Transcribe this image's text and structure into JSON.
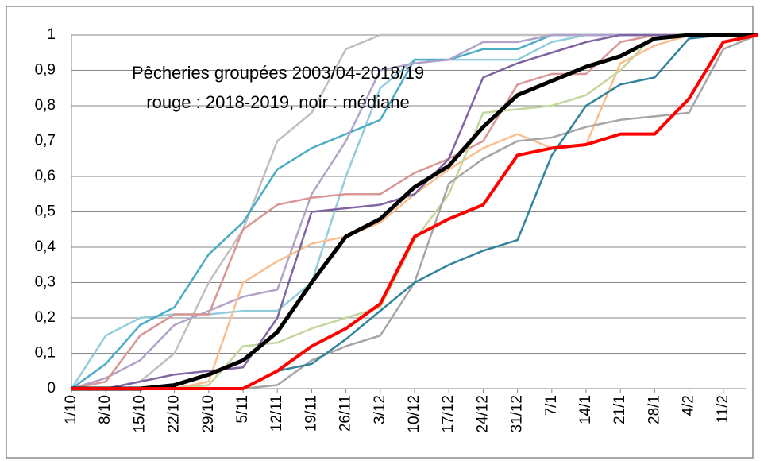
{
  "chart_data": {
    "type": "line",
    "annotations": [
      "Pêcheries groupées 2003/04-2018/19",
      "rouge : 2018-2019, noir : médiane"
    ],
    "categories": [
      "1/10",
      "8/10",
      "15/10",
      "22/10",
      "29/10",
      "5/11",
      "12/11",
      "19/11",
      "26/11",
      "3/12",
      "10/12",
      "17/12",
      "24/12",
      "31/12",
      "7/1",
      "14/1",
      "21/1",
      "28/1",
      "4/2",
      "11/2",
      null
    ],
    "ylim": [
      0,
      1
    ],
    "yticks": [
      0,
      {
        "value": 0.1,
        "label": "0,1"
      },
      {
        "value": 0.2,
        "label": "0,2"
      },
      {
        "value": 0.3,
        "label": "0,3"
      },
      {
        "value": 0.4,
        "label": "0,4"
      },
      {
        "value": 0.5,
        "label": "0,5"
      },
      {
        "value": 0.6,
        "label": "0,6"
      },
      {
        "value": 0.7,
        "label": "0,7"
      },
      {
        "value": 0.8,
        "label": "0,8"
      },
      {
        "value": 0.9,
        "label": "0,9"
      },
      1
    ],
    "grid": true,
    "series": [
      {
        "color": "#bfbfbf",
        "values": [
          0,
          0,
          0.02,
          0.1,
          0.3,
          0.45,
          0.7,
          0.78,
          0.96,
          1,
          1,
          1,
          1,
          1,
          1,
          1,
          1,
          1,
          1,
          1,
          1
        ]
      },
      {
        "color": "#93cddd",
        "values": [
          0,
          0.15,
          0.2,
          0.21,
          0.21,
          0.22,
          0.22,
          0.3,
          0.6,
          0.85,
          0.93,
          0.93,
          0.93,
          0.93,
          0.98,
          1,
          1,
          1,
          1,
          1,
          1
        ]
      },
      {
        "color": "#4bacc6",
        "values": [
          0,
          0.07,
          0.18,
          0.23,
          0.38,
          0.47,
          0.62,
          0.68,
          0.72,
          0.76,
          0.93,
          0.93,
          0.96,
          0.96,
          1,
          1,
          1,
          1,
          1,
          1,
          1
        ]
      },
      {
        "color": "#b3a2c7",
        "values": [
          0,
          0.03,
          0.08,
          0.18,
          0.22,
          0.26,
          0.28,
          0.55,
          0.7,
          0.9,
          0.92,
          0.93,
          0.98,
          0.98,
          1,
          1,
          1,
          1,
          1,
          1,
          1
        ]
      },
      {
        "color": "#d99694",
        "values": [
          0,
          0.02,
          0.15,
          0.21,
          0.21,
          0.45,
          0.52,
          0.54,
          0.55,
          0.55,
          0.61,
          0.65,
          0.7,
          0.86,
          0.89,
          0.89,
          0.98,
          1,
          1,
          1,
          1
        ]
      },
      {
        "color": "#fabf8f",
        "values": [
          0,
          0,
          0,
          0,
          0.02,
          0.3,
          0.36,
          0.41,
          0.43,
          0.47,
          0.55,
          0.62,
          0.68,
          0.72,
          0.68,
          0.69,
          0.92,
          0.97,
          1,
          1,
          1
        ]
      },
      {
        "color": "#c3d69b",
        "values": [
          0,
          0,
          0,
          0,
          0.01,
          0.12,
          0.13,
          0.17,
          0.2,
          0.23,
          0.42,
          0.55,
          0.78,
          0.79,
          0.8,
          0.83,
          0.9,
          1,
          1,
          1,
          1
        ]
      },
      {
        "color": "#a6a6a6",
        "values": [
          0,
          0,
          0,
          0,
          0,
          0,
          0.01,
          0.08,
          0.12,
          0.15,
          0.3,
          0.58,
          0.65,
          0.7,
          0.71,
          0.74,
          0.76,
          0.77,
          0.78,
          0.96,
          1
        ]
      },
      {
        "color": "#8064a2",
        "values": [
          0,
          0,
          0.02,
          0.04,
          0.05,
          0.06,
          0.2,
          0.5,
          0.51,
          0.52,
          0.55,
          0.65,
          0.88,
          0.92,
          0.95,
          0.98,
          1,
          1,
          1,
          1,
          1
        ]
      },
      {
        "color": "#31849b",
        "values": [
          0,
          0,
          0,
          0,
          0,
          0,
          0.05,
          0.07,
          0.14,
          0.22,
          0.3,
          0.35,
          0.39,
          0.42,
          0.66,
          0.8,
          0.86,
          0.88,
          0.99,
          1,
          1
        ]
      },
      {
        "color": "#000000",
        "values": [
          0,
          0,
          0,
          0.01,
          0.04,
          0.08,
          0.16,
          0.3,
          0.43,
          0.48,
          0.57,
          0.63,
          0.74,
          0.83,
          0.87,
          0.91,
          0.94,
          0.99,
          1,
          1,
          1
        ]
      },
      {
        "color": "#ff0000",
        "values": [
          0,
          0,
          0,
          0,
          0,
          0,
          0.05,
          0.12,
          0.17,
          0.24,
          0.43,
          0.48,
          0.52,
          0.66,
          0.68,
          0.69,
          0.72,
          0.72,
          0.82,
          0.98,
          1
        ]
      }
    ]
  }
}
